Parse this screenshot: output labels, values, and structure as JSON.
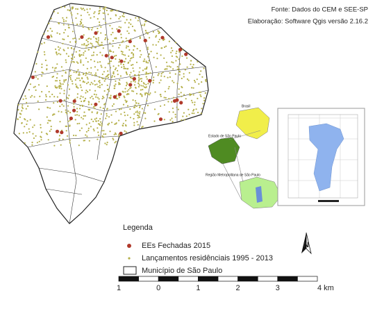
{
  "header": {
    "source": "Fonte: Dados do CEM e SEE-SP",
    "credit": "Elaboração: Software Qgis versão 2.16.2"
  },
  "inset": {
    "country": "Brasil",
    "state": "Estado de São Paulo",
    "metro": "Região Metropolitana de São Paulo"
  },
  "legend": {
    "title": "Legenda",
    "items": [
      "EEs Fechadas 2015",
      "Lançamentos residênciais 1995 - 2013",
      "Município de São Paulo"
    ]
  },
  "north": "N",
  "scale_bar": {
    "labels": [
      "1",
      "0",
      "1",
      "2",
      "3",
      "4 km"
    ]
  }
}
